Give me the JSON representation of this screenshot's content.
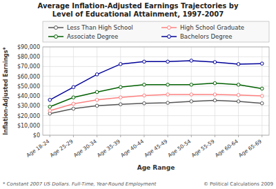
{
  "chart_data": {
    "type": "line",
    "title": "Average Inflation-Adjusted Earnings Trajectories by\nLevel of Educational Attainment, 1997-2007",
    "xlabel": "Age Range",
    "ylabel": "Inflation-Adjusted Earnings*",
    "footnote": "* Constant 2007 US Dollars.  Full-Time, Year-Round Employment",
    "copyright": "© Political Calculations 2009",
    "categories": [
      "Age 18-24",
      "Age 25-29",
      "Age 30-34",
      "Age 35-39",
      "Age 40-44",
      "Age 45-49",
      "Age 50-54",
      "Age 55-59",
      "Age 60-64",
      "Age 65-69"
    ],
    "series": [
      {
        "name": "Less Than High School",
        "color": "#555555",
        "values": [
          22000,
          27000,
          30000,
          31500,
          32500,
          33000,
          34500,
          35500,
          34500,
          32500
        ]
      },
      {
        "name": "High School Graduate",
        "color": "#ff8080",
        "values": [
          25000,
          32000,
          36000,
          38500,
          40500,
          41500,
          41500,
          41500,
          41000,
          40000
        ]
      },
      {
        "name": "Associate Degree",
        "color": "#006000",
        "values": [
          29000,
          38500,
          44000,
          49000,
          51500,
          51500,
          51500,
          53000,
          51500,
          47500
        ]
      },
      {
        "name": "Bachelors Degree",
        "color": "#000099",
        "values": [
          36000,
          49000,
          62000,
          72500,
          75000,
          75000,
          76000,
          74500,
          72500,
          73000
        ]
      }
    ],
    "ylim": [
      0,
      90000
    ],
    "yticks": [
      {
        "value": 0,
        "label": "$0"
      },
      {
        "value": 10000,
        "label": "$10,000"
      },
      {
        "value": 20000,
        "label": "$20,000"
      },
      {
        "value": 30000,
        "label": "$30,000"
      },
      {
        "value": 40000,
        "label": "$40,000"
      },
      {
        "value": 50000,
        "label": "$50,000"
      },
      {
        "value": 60000,
        "label": "$60,000"
      },
      {
        "value": 70000,
        "label": "$70,000"
      },
      {
        "value": 80000,
        "label": "$80,000"
      },
      {
        "value": 90000,
        "label": "$90,000"
      }
    ],
    "grid": true,
    "legend": "top",
    "marker": "circle"
  }
}
